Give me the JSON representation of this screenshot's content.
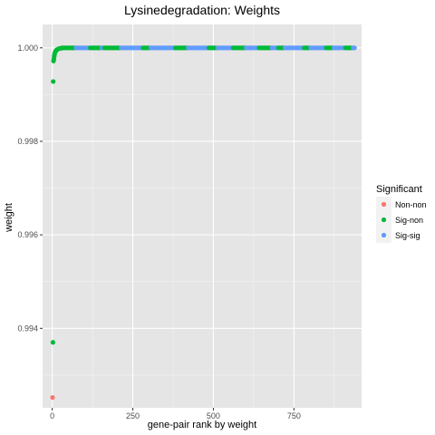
{
  "chart_data": {
    "type": "scatter",
    "title": "Lysinedegradation: Weights",
    "xlabel": "gene-pair rank by weight",
    "ylabel": "weight",
    "xlim": [
      -30,
      960
    ],
    "ylim": [
      0.9923,
      1.0005
    ],
    "x_ticks": [
      0,
      250,
      500,
      750
    ],
    "x_tick_labels": [
      "0",
      "250",
      "500",
      "750"
    ],
    "y_ticks": [
      0.994,
      0.996,
      0.998,
      1.0
    ],
    "y_tick_labels": [
      "0.994",
      "0.996",
      "0.998",
      "1.000"
    ],
    "grid": true,
    "background": "#e5e5e5",
    "legend": {
      "title": "Significant",
      "placement": "right",
      "entries": [
        {
          "label": "Non-non",
          "color": "#f8766d"
        },
        {
          "label": "Sig-non",
          "color": "#00ba38"
        },
        {
          "label": "Sig-sig",
          "color": "#619cff"
        }
      ]
    },
    "points": [
      {
        "x": 1,
        "y": 0.99252,
        "series": "Non-non"
      },
      {
        "x": 2,
        "y": 0.9937,
        "series": "Sig-non"
      },
      {
        "x": 3,
        "y": 0.99928,
        "series": "Sig-non"
      },
      {
        "x": 4,
        "y": 0.99972,
        "series": "Sig-non"
      },
      {
        "x": 5,
        "y": 0.99976,
        "series": "Sig-non"
      },
      {
        "x": 6,
        "y": 0.99982,
        "series": "Sig-non"
      },
      {
        "x": 7,
        "y": 0.99986,
        "series": "Sig-non"
      },
      {
        "x": 8,
        "y": 0.99989,
        "series": "Sig-non"
      },
      {
        "x": 10,
        "y": 0.99992,
        "series": "Sig-non"
      },
      {
        "x": 12,
        "y": 0.99994,
        "series": "Sig-non"
      },
      {
        "x": 14,
        "y": 0.99996,
        "series": "Sig-non"
      },
      {
        "x": 17,
        "y": 0.99997,
        "series": "Sig-non"
      },
      {
        "x": 20,
        "y": 0.99998,
        "series": "Sig-non"
      },
      {
        "x": 24,
        "y": 0.99999,
        "series": "Sig-non"
      },
      {
        "x": 28,
        "y": 0.99999,
        "series": "Sig-non"
      }
    ],
    "plateau": {
      "y": 1.0,
      "x_start": 30,
      "x_end": 940,
      "step": 4,
      "sig_non_ranges": [
        [
          30,
          70
        ],
        [
          115,
          150
        ],
        [
          160,
          210
        ],
        [
          280,
          305
        ],
        [
          380,
          420
        ],
        [
          485,
          510
        ],
        [
          560,
          600
        ],
        [
          640,
          680
        ],
        [
          700,
          720
        ],
        [
          780,
          800
        ],
        [
          850,
          870
        ],
        [
          910,
          930
        ]
      ]
    }
  }
}
